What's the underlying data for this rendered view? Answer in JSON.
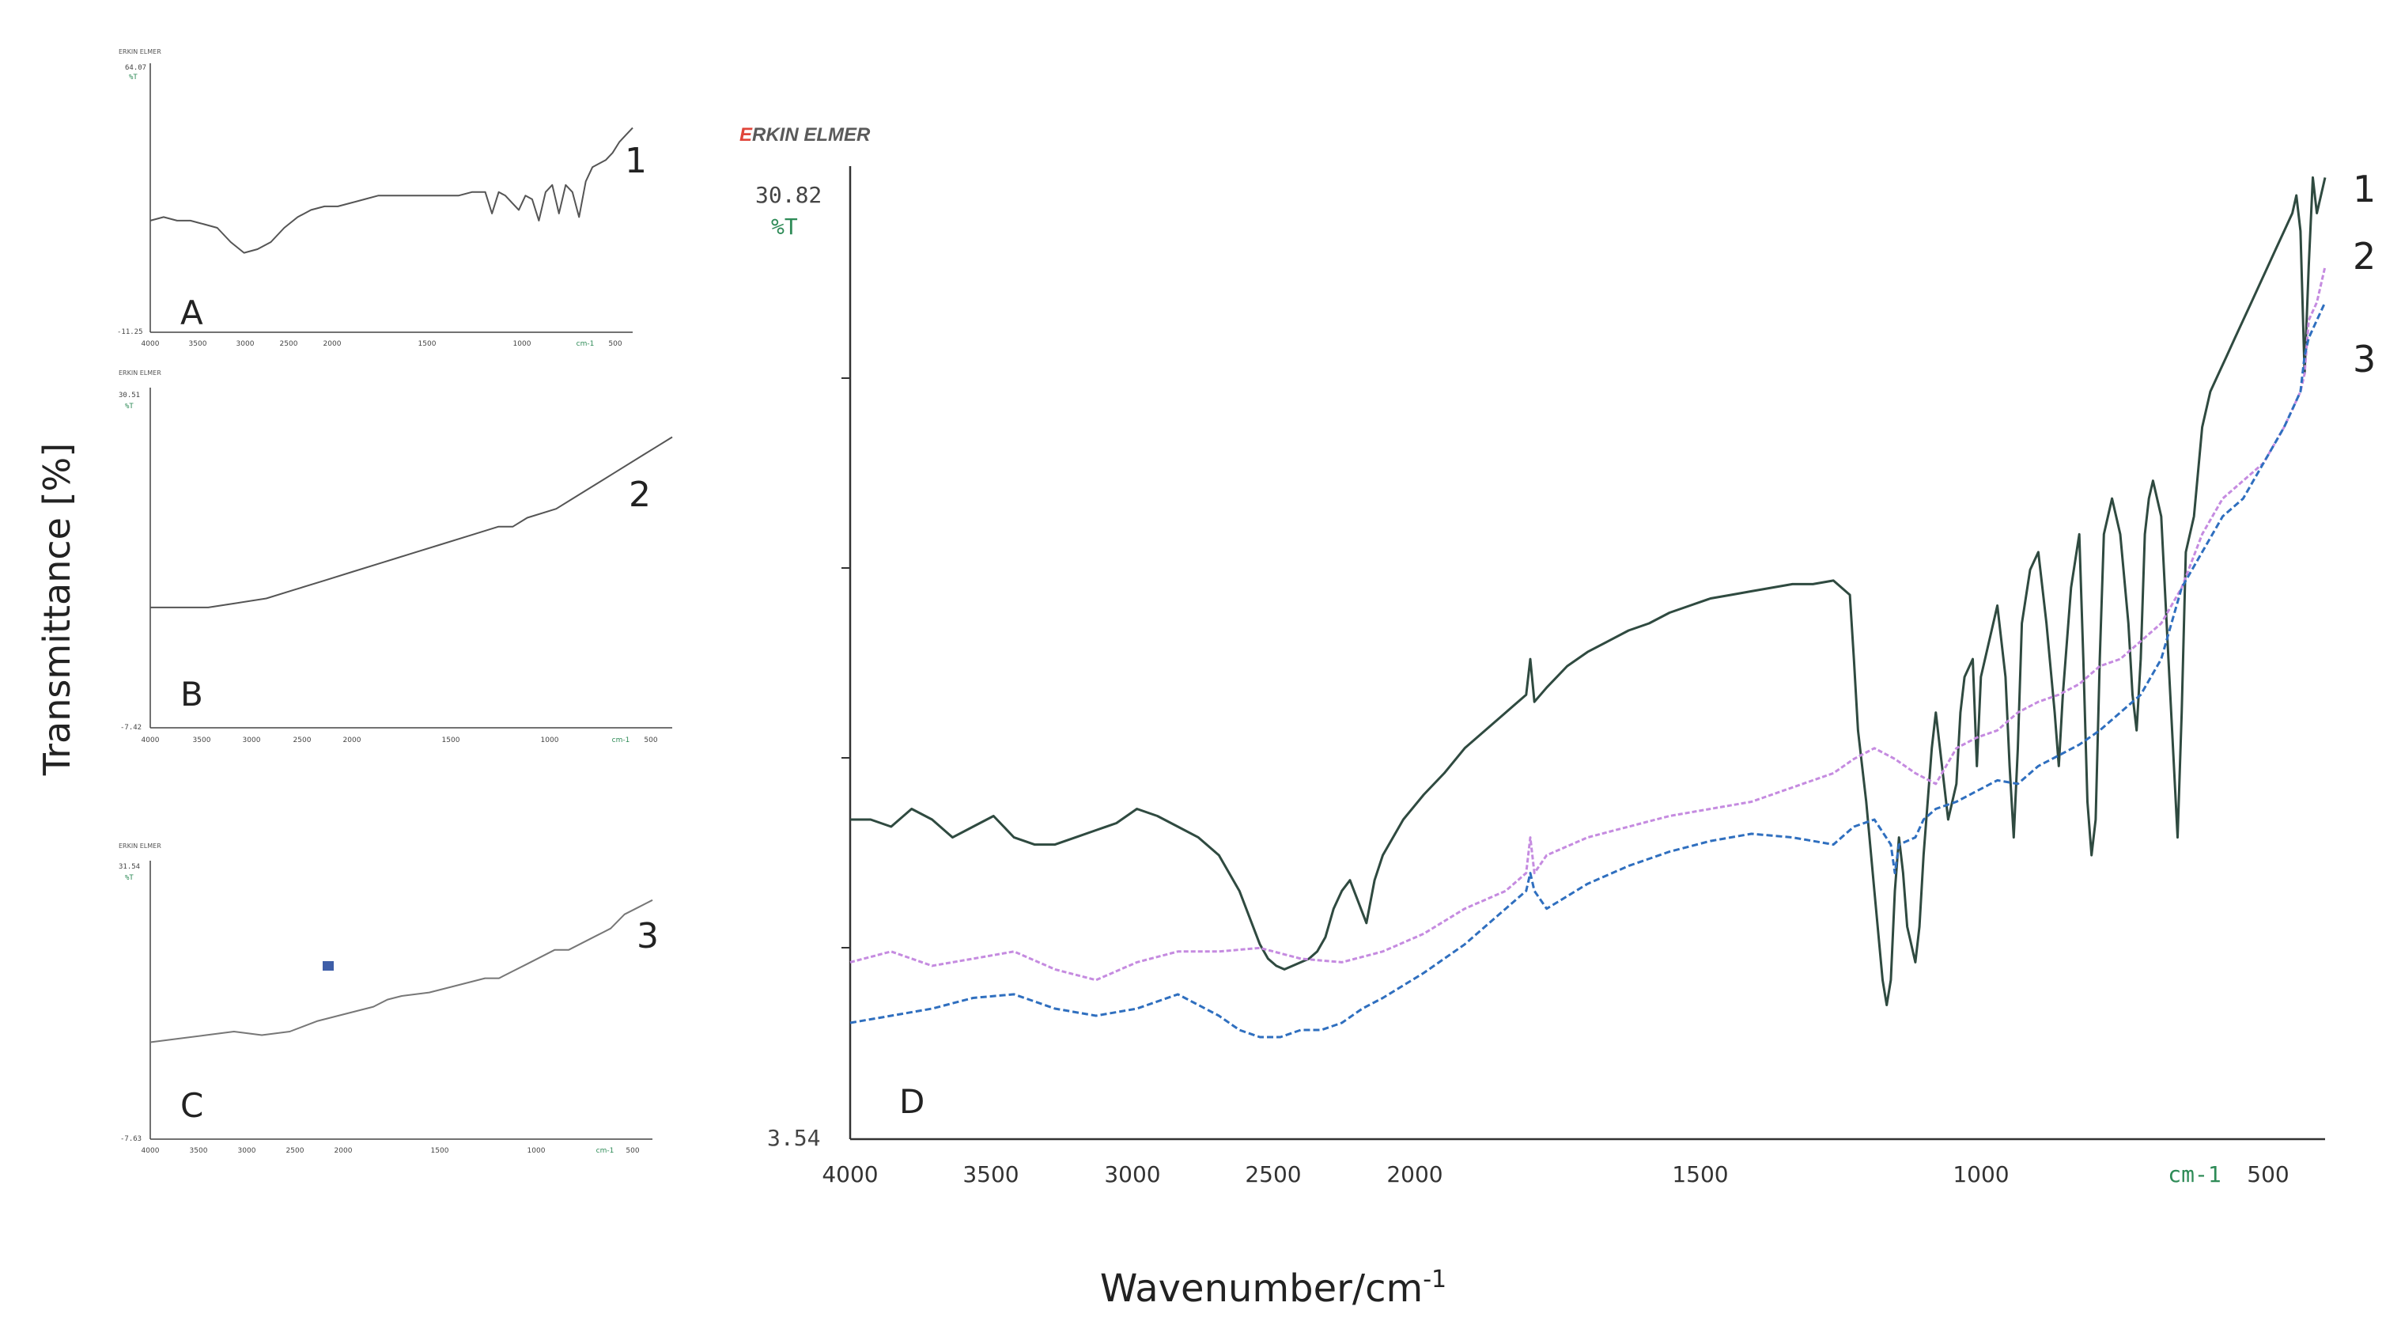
{
  "figure": {
    "ylabel": "Transmittance [%]",
    "xlabel": "Wavenumber/cm",
    "xlabel_sup": "-1"
  },
  "colors": {
    "series1": "#2f4a40",
    "series2": "#c58be0",
    "series3": "#2f6fbf",
    "brand_red": "#e0453a",
    "brand_gray": "#5a5a5a",
    "readout": "#2e8b57",
    "axis": "#333333"
  },
  "chart_data": [
    {
      "type": "line",
      "panel": "A",
      "header": "ERKIN ELMER",
      "ymax_label": "64.07",
      "ymin_label": "-11.25",
      "yunit": "%T",
      "trace_label": "1",
      "xlim": [
        4000,
        400
      ],
      "ylim": [
        -11.25,
        64.07
      ],
      "xticks": [
        4000,
        3500,
        3000,
        2500,
        2000,
        1500,
        1000,
        500
      ],
      "xunit": "cm-1",
      "series": [
        {
          "name": "1",
          "x": [
            4000,
            3900,
            3800,
            3700,
            3600,
            3500,
            3400,
            3300,
            3200,
            3100,
            3000,
            2900,
            2800,
            2700,
            2600,
            2500,
            2400,
            2300,
            2200,
            2100,
            2000,
            1900,
            1800,
            1700,
            1600,
            1500,
            1450,
            1400,
            1350,
            1300,
            1250,
            1200,
            1150,
            1100,
            1050,
            1000,
            950,
            900,
            850,
            800,
            750,
            700,
            650,
            600,
            550,
            500,
            450,
            400
          ],
          "y": [
            20,
            21,
            20,
            20,
            19,
            18,
            14,
            11,
            12,
            14,
            18,
            21,
            23,
            24,
            24,
            25,
            26,
            27,
            27,
            27,
            27,
            27,
            27,
            27,
            28,
            28,
            22,
            28,
            27,
            25,
            23,
            27,
            26,
            20,
            28,
            30,
            22,
            30,
            28,
            21,
            31,
            35,
            36,
            37,
            39,
            42,
            44,
            46
          ]
        }
      ]
    },
    {
      "type": "line",
      "panel": "B",
      "header": "ERKIN ELMER",
      "ymax_label": "30.51",
      "ymin_label": "-7.42",
      "yunit": "%T",
      "trace_label": "2",
      "xlim": [
        4000,
        400
      ],
      "ylim": [
        -7.42,
        30.51
      ],
      "xticks": [
        4000,
        3500,
        3000,
        2500,
        2000,
        1500,
        1000,
        500
      ],
      "xunit": "cm-1",
      "series": [
        {
          "name": "2",
          "x": [
            4000,
            3800,
            3600,
            3400,
            3200,
            3000,
            2800,
            2600,
            2400,
            2300,
            2200,
            2000,
            1800,
            1600,
            1500,
            1400,
            1200,
            1000,
            800,
            600,
            500,
            400
          ],
          "y": [
            6,
            6,
            6,
            6.5,
            7,
            8,
            9,
            10,
            11,
            11.5,
            12,
            13,
            14,
            15,
            15,
            16,
            17,
            19,
            21,
            23,
            24,
            25
          ]
        }
      ]
    },
    {
      "type": "line",
      "panel": "C",
      "header": "ERKIN ELMER",
      "ymax_label": "31.54",
      "ymin_label": "-7.63",
      "yunit": "%T",
      "trace_label": "3",
      "xlim": [
        4000,
        400
      ],
      "ylim": [
        -7.63,
        31.54
      ],
      "xticks": [
        4000,
        3500,
        3000,
        2500,
        2000,
        1500,
        1000,
        500
      ],
      "xunit": "cm-1",
      "series": [
        {
          "name": "3",
          "x": [
            4000,
            3800,
            3600,
            3400,
            3200,
            3000,
            2800,
            2600,
            2400,
            2300,
            2200,
            2000,
            1800,
            1600,
            1500,
            1400,
            1300,
            1200,
            1100,
            1000,
            900,
            800,
            700,
            600,
            500,
            400
          ],
          "y": [
            6,
            6.5,
            7,
            7.5,
            7,
            7.5,
            9,
            10,
            11,
            12,
            12.5,
            13,
            14,
            15,
            15,
            16,
            17,
            18,
            19,
            19,
            20,
            21,
            22,
            24,
            25,
            26
          ]
        }
      ]
    },
    {
      "type": "line",
      "panel": "D",
      "header": "ERKIN ELMER",
      "ymax_label": "30.82",
      "ymin_label": "3.54",
      "yunit": "%T",
      "xlim": [
        4000,
        400
      ],
      "ylim": [
        3.54,
        30.82
      ],
      "xticks": [
        4000,
        3500,
        3000,
        2500,
        2000,
        1500,
        1000,
        500
      ],
      "xunit": "cm-1",
      "series": [
        {
          "name": "1",
          "color": "#2f4a40",
          "dash": "none",
          "x": [
            4000,
            3950,
            3900,
            3850,
            3800,
            3750,
            3700,
            3650,
            3600,
            3550,
            3500,
            3450,
            3400,
            3350,
            3300,
            3250,
            3200,
            3150,
            3100,
            3050,
            3000,
            2980,
            2960,
            2940,
            2920,
            2900,
            2880,
            2860,
            2840,
            2820,
            2800,
            2780,
            2760,
            2740,
            2720,
            2700,
            2650,
            2600,
            2550,
            2500,
            2450,
            2400,
            2350,
            2340,
            2330,
            2300,
            2250,
            2200,
            2150,
            2100,
            2050,
            2000,
            1950,
            1900,
            1850,
            1800,
            1750,
            1700,
            1650,
            1600,
            1560,
            1550,
            1540,
            1520,
            1500,
            1480,
            1470,
            1460,
            1450,
            1440,
            1430,
            1420,
            1400,
            1390,
            1380,
            1370,
            1360,
            1350,
            1340,
            1320,
            1300,
            1290,
            1280,
            1260,
            1250,
            1240,
            1220,
            1200,
            1180,
            1170,
            1160,
            1150,
            1140,
            1120,
            1100,
            1080,
            1060,
            1050,
            1040,
            1020,
            1000,
            990,
            980,
            970,
            960,
            950,
            940,
            920,
            900,
            880,
            870,
            860,
            850,
            840,
            830,
            820,
            800,
            780,
            760,
            750,
            740,
            720,
            700,
            680,
            660,
            640,
            620,
            600,
            580,
            560,
            540,
            520,
            500,
            480,
            470,
            460,
            450,
            440,
            430,
            420,
            410,
            400
          ],
          "y": [
            12.5,
            12.5,
            12.3,
            12.8,
            12.5,
            12.0,
            12.3,
            12.6,
            12.0,
            11.8,
            11.8,
            12.0,
            12.2,
            12.4,
            12.8,
            12.6,
            12.3,
            12.0,
            11.5,
            10.5,
            9.0,
            8.6,
            8.4,
            8.3,
            8.4,
            8.5,
            8.6,
            8.8,
            9.2,
            10.0,
            10.5,
            10.8,
            10.2,
            9.6,
            10.8,
            11.5,
            12.5,
            13.2,
            13.8,
            14.5,
            15.0,
            15.5,
            16.0,
            17.0,
            15.8,
            16.2,
            16.8,
            17.2,
            17.5,
            17.8,
            18.0,
            18.3,
            18.5,
            18.7,
            18.8,
            18.9,
            19.0,
            19.1,
            19.1,
            19.2,
            18.8,
            17.0,
            15.0,
            13.0,
            10.5,
            8.0,
            7.3,
            8.0,
            10.5,
            12.0,
            11.0,
            9.5,
            8.5,
            9.5,
            11.5,
            13.0,
            14.5,
            15.5,
            14.5,
            12.5,
            13.5,
            15.5,
            16.5,
            17.0,
            14.0,
            16.5,
            17.5,
            18.5,
            16.5,
            14.0,
            12.0,
            14.5,
            18.0,
            19.5,
            20.0,
            18.0,
            15.5,
            14.0,
            16.0,
            19.0,
            20.5,
            17.0,
            13.0,
            11.5,
            12.5,
            17.0,
            20.5,
            21.5,
            20.5,
            18.0,
            16.0,
            15.0,
            17.0,
            20.5,
            21.5,
            22.0,
            21.0,
            16.5,
            12.0,
            15.5,
            20.0,
            21.0,
            23.5,
            24.5,
            25.0,
            25.5,
            26.0,
            26.5,
            27.0,
            27.5,
            28.0,
            28.5,
            29.0,
            29.5,
            30.0,
            29.0,
            25.0,
            28.0,
            30.5,
            29.5,
            30.0,
            30.5
          ]
        },
        {
          "name": "2",
          "color": "#c58be0",
          "dash": "6,3",
          "x": [
            4000,
            3900,
            3800,
            3700,
            3600,
            3500,
            3400,
            3300,
            3200,
            3100,
            3000,
            2900,
            2800,
            2700,
            2600,
            2500,
            2400,
            2350,
            2340,
            2330,
            2300,
            2200,
            2100,
            2000,
            1900,
            1800,
            1700,
            1600,
            1550,
            1500,
            1450,
            1400,
            1350,
            1300,
            1250,
            1200,
            1150,
            1100,
            1050,
            1000,
            950,
            900,
            850,
            800,
            750,
            700,
            650,
            600,
            550,
            500,
            480,
            460,
            450,
            440,
            420,
            400
          ],
          "y": [
            8.5,
            8.8,
            8.4,
            8.6,
            8.8,
            8.3,
            8.0,
            8.5,
            8.8,
            8.8,
            8.9,
            8.6,
            8.5,
            8.8,
            9.3,
            10.0,
            10.5,
            11.0,
            12.0,
            11.0,
            11.5,
            12.0,
            12.3,
            12.6,
            12.8,
            13.0,
            13.4,
            13.8,
            14.2,
            14.5,
            14.2,
            13.8,
            13.5,
            14.5,
            14.8,
            15.0,
            15.5,
            15.8,
            16.0,
            16.3,
            16.8,
            17.0,
            17.5,
            18.0,
            19.0,
            20.5,
            21.5,
            22.0,
            22.5,
            23.5,
            24.0,
            24.5,
            25.0,
            26.5,
            27.0,
            28.0
          ]
        },
        {
          "name": "3",
          "color": "#2f6fbf",
          "dash": "8,4",
          "x": [
            4000,
            3900,
            3800,
            3700,
            3600,
            3500,
            3400,
            3300,
            3200,
            3100,
            3050,
            3000,
            2950,
            2900,
            2850,
            2800,
            2750,
            2700,
            2600,
            2500,
            2400,
            2350,
            2340,
            2330,
            2300,
            2200,
            2100,
            2000,
            1900,
            1800,
            1700,
            1600,
            1550,
            1500,
            1460,
            1450,
            1440,
            1400,
            1380,
            1350,
            1300,
            1250,
            1200,
            1150,
            1100,
            1050,
            1000,
            950,
            900,
            850,
            800,
            750,
            700,
            650,
            600,
            550,
            500,
            480,
            460,
            450,
            440,
            420,
            400
          ],
          "y": [
            6.8,
            7.0,
            7.2,
            7.5,
            7.6,
            7.2,
            7.0,
            7.2,
            7.6,
            7.0,
            6.6,
            6.4,
            6.4,
            6.6,
            6.6,
            6.8,
            7.2,
            7.5,
            8.2,
            9.0,
            10.0,
            10.5,
            11.0,
            10.5,
            10.0,
            10.7,
            11.2,
            11.6,
            11.9,
            12.1,
            12.0,
            11.8,
            12.3,
            12.5,
            11.8,
            11.0,
            11.8,
            12.0,
            12.5,
            12.8,
            13.0,
            13.3,
            13.6,
            13.5,
            14.0,
            14.3,
            14.6,
            15.0,
            15.5,
            16.0,
            17.0,
            19.0,
            20.0,
            21.0,
            21.5,
            22.5,
            23.5,
            24.0,
            24.5,
            25.5,
            26.0,
            26.5,
            27.0
          ]
        }
      ]
    }
  ],
  "panels": {
    "A": {
      "label": "A",
      "header": "ERKIN ELMER",
      "ymax_label": "64.07",
      "yunit": "%T",
      "ymin_label": "-11.25",
      "trace_label": "1",
      "ticks": [
        "4000",
        "3500",
        "3000",
        "2500",
        "2000",
        "1500",
        "1000",
        "cm-1",
        "500"
      ]
    },
    "B": {
      "label": "B",
      "header": "ERKIN ELMER",
      "ymax_label": "30.51",
      "yunit": "%T",
      "ymin_label": "-7.42",
      "trace_label": "2",
      "ticks": [
        "4000",
        "3500",
        "3000",
        "2500",
        "2000",
        "1500",
        "1000",
        "cm-1",
        "500"
      ]
    },
    "C": {
      "label": "C",
      "header": "ERKIN ELMER",
      "ymax_label": "31.54",
      "yunit": "%T",
      "ymin_label": "-7.63",
      "trace_label": "3",
      "ticks": [
        "4000",
        "3500",
        "3000",
        "2500",
        "2000",
        "1500",
        "1000",
        "cm-1",
        "500"
      ]
    },
    "D": {
      "label": "D",
      "brand_first": "E",
      "brand_rest": "RKIN ELMER",
      "ymax_label": "30.82",
      "yunit": "%T",
      "ymin_label": "3.54",
      "xunit": "cm-1",
      "ticks": [
        "4000",
        "3500",
        "3000",
        "2500",
        "2000",
        "1500",
        "1000",
        "500"
      ],
      "trace_labels": [
        "1",
        "2",
        "3"
      ]
    }
  }
}
